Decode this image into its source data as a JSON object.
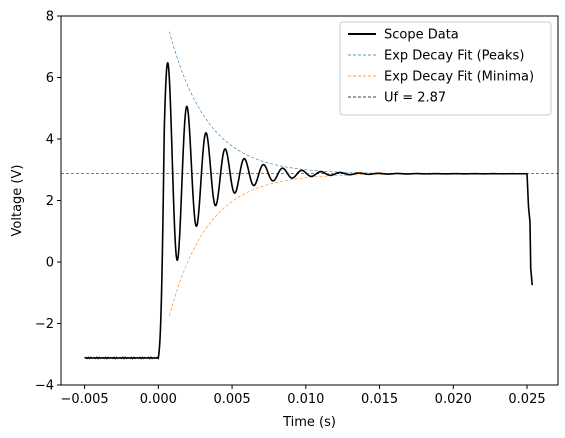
{
  "chart_data": {
    "type": "line",
    "xlabel": "Time (s)",
    "ylabel": "Voltage (V)",
    "xlim": [
      -0.0066,
      0.0271
    ],
    "ylim": [
      -4,
      8
    ],
    "xticks": [
      -0.005,
      0.0,
      0.005,
      0.01,
      0.015,
      0.02,
      0.025
    ],
    "xtick_labels": [
      "−0.005",
      "0.000",
      "0.005",
      "0.010",
      "0.015",
      "0.020",
      "0.025"
    ],
    "yticks": [
      -4,
      -2,
      0,
      2,
      4,
      6,
      8
    ],
    "ytick_labels": [
      "−4",
      "−2",
      "0",
      "2",
      "4",
      "6",
      "8"
    ],
    "legend_position": "top-right",
    "grid": false,
    "series": [
      {
        "name": "Scope Data",
        "color": "#000000",
        "style": "solid",
        "model": {
          "baseline": -3.12,
          "t_start": 0.0,
          "t_end": 0.025,
          "final_value": 2.87,
          "amplitude": 4.62,
          "decay_tau": 0.0026,
          "frequency_hz": 770,
          "drop_points": [
            [
              0.0251,
              1.8
            ],
            [
              0.0252,
              1.3
            ],
            [
              0.02525,
              -0.2
            ],
            [
              0.02535,
              -0.75
            ]
          ]
        }
      },
      {
        "name": "Exp Decay Fit (Peaks)",
        "color": "#1f77b4",
        "style": "dashed",
        "model": {
          "final_value": 2.87,
          "amplitude": 4.62,
          "tau": 0.0026,
          "t_from": 0.00075,
          "t_to": 0.025
        }
      },
      {
        "name": "Exp Decay Fit (Minima)",
        "color": "#ff7f0e",
        "style": "dashed",
        "model": {
          "final_value": 2.87,
          "amplitude": -4.62,
          "tau": 0.0026,
          "t_from": 0.00075,
          "t_to": 0.025
        }
      },
      {
        "name": "Uf = 2.87",
        "color": "#000000",
        "style": "dashed",
        "model": {
          "y": 2.87
        }
      }
    ]
  }
}
